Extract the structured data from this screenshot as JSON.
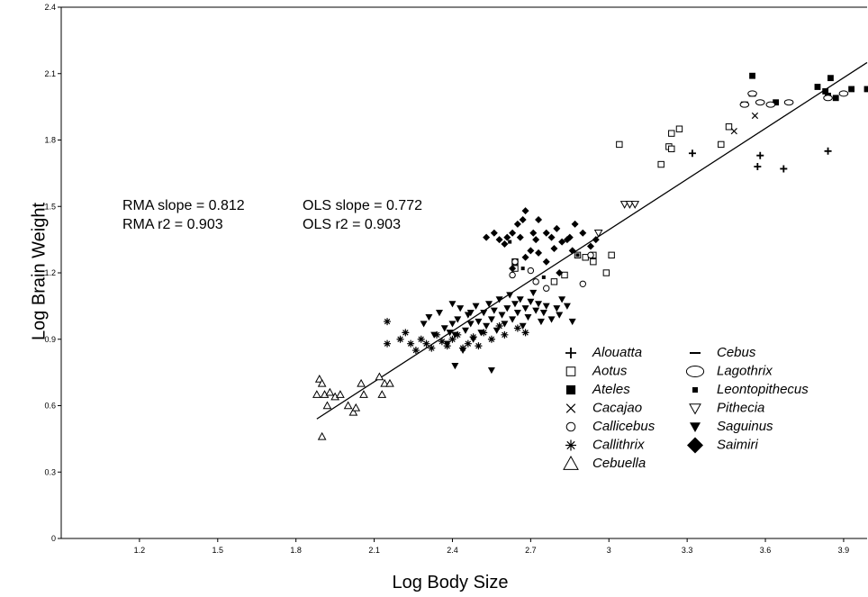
{
  "chart_data": {
    "type": "scatter",
    "title": "",
    "xlabel": "Log Body Size",
    "ylabel": "Log Brain Weight",
    "xlim": [
      0.9,
      3.99
    ],
    "ylim": [
      0,
      2.4
    ],
    "x_ticks": [
      "1.2",
      "1.5",
      "1.8",
      "2.1",
      "2.4",
      "2.7",
      "3",
      "3.3",
      "3.6",
      "3.9"
    ],
    "y_ticks": [
      "0",
      "0.3",
      "0.6",
      "0.9",
      "1.2",
      "1.5",
      "1.8",
      "2.1",
      "2.4"
    ],
    "grid": false,
    "legend_position": "bottom-right",
    "annotations": {
      "rma_slope": "RMA slope = 0.812",
      "rma_r2": "RMA r2 = 0.903",
      "ols_slope": "OLS slope = 0.772",
      "ols_r2": "OLS r2 = 0.903"
    },
    "regression_line": {
      "x": [
        1.88,
        3.99
      ],
      "y": [
        0.54,
        2.15
      ]
    },
    "series": [
      {
        "name": "Alouatta",
        "marker": "plus",
        "points": [
          [
            3.32,
            1.74
          ],
          [
            3.57,
            1.68
          ],
          [
            3.58,
            1.73
          ],
          [
            3.67,
            1.67
          ],
          [
            3.84,
            1.75
          ]
        ]
      },
      {
        "name": "Aotus",
        "marker": "open-square",
        "points": [
          [
            2.64,
            1.22
          ],
          [
            2.64,
            1.25
          ],
          [
            2.79,
            1.16
          ],
          [
            2.83,
            1.19
          ],
          [
            2.88,
            1.28
          ],
          [
            2.91,
            1.27
          ],
          [
            2.94,
            1.25
          ],
          [
            2.94,
            1.28
          ],
          [
            2.99,
            1.2
          ],
          [
            3.01,
            1.28
          ],
          [
            3.04,
            1.78
          ],
          [
            3.2,
            1.69
          ],
          [
            3.23,
            1.77
          ],
          [
            3.24,
            1.76
          ],
          [
            3.24,
            1.83
          ],
          [
            3.27,
            1.85
          ],
          [
            3.43,
            1.78
          ],
          [
            3.46,
            1.86
          ]
        ]
      },
      {
        "name": "Ateles",
        "marker": "filled-square",
        "points": [
          [
            3.55,
            2.09
          ],
          [
            3.64,
            1.97
          ],
          [
            3.8,
            2.04
          ],
          [
            3.83,
            2.02
          ],
          [
            3.84,
            2.0
          ],
          [
            3.85,
            2.08
          ],
          [
            3.87,
            1.99
          ],
          [
            3.93,
            2.03
          ],
          [
            3.99,
            2.03
          ]
        ]
      },
      {
        "name": "Cacajao",
        "marker": "x",
        "points": [
          [
            3.48,
            1.84
          ],
          [
            3.56,
            1.91
          ]
        ]
      },
      {
        "name": "Callicebus",
        "marker": "open-circle",
        "points": [
          [
            2.63,
            1.19
          ],
          [
            2.64,
            1.25
          ],
          [
            2.7,
            1.21
          ],
          [
            2.72,
            1.16
          ],
          [
            2.76,
            1.13
          ],
          [
            2.9,
            1.15
          ],
          [
            2.93,
            1.28
          ]
        ]
      },
      {
        "name": "Callithrix",
        "marker": "asterisk",
        "points": [
          [
            2.15,
            0.98
          ],
          [
            2.15,
            0.88
          ],
          [
            2.2,
            0.9
          ],
          [
            2.22,
            0.93
          ],
          [
            2.24,
            0.88
          ],
          [
            2.26,
            0.85
          ],
          [
            2.28,
            0.9
          ],
          [
            2.3,
            0.88
          ],
          [
            2.32,
            0.86
          ],
          [
            2.34,
            0.92
          ],
          [
            2.36,
            0.89
          ],
          [
            2.38,
            0.87
          ],
          [
            2.4,
            0.9
          ],
          [
            2.42,
            0.92
          ],
          [
            2.44,
            0.86
          ],
          [
            2.46,
            0.88
          ],
          [
            2.48,
            0.91
          ],
          [
            2.5,
            0.87
          ],
          [
            2.52,
            0.93
          ],
          [
            2.55,
            0.9
          ],
          [
            2.58,
            0.96
          ],
          [
            2.6,
            0.92
          ],
          [
            2.65,
            0.95
          ],
          [
            2.68,
            0.93
          ]
        ]
      },
      {
        "name": "Cebuella",
        "marker": "open-triangle",
        "points": [
          [
            1.88,
            0.65
          ],
          [
            1.89,
            0.72
          ],
          [
            1.9,
            0.7
          ],
          [
            1.91,
            0.65
          ],
          [
            1.92,
            0.6
          ],
          [
            1.93,
            0.66
          ],
          [
            1.95,
            0.64
          ],
          [
            1.97,
            0.65
          ],
          [
            1.9,
            0.46
          ],
          [
            2.0,
            0.6
          ],
          [
            2.02,
            0.57
          ],
          [
            2.03,
            0.59
          ],
          [
            2.05,
            0.7
          ],
          [
            2.06,
            0.65
          ],
          [
            2.12,
            0.73
          ],
          [
            2.13,
            0.65
          ],
          [
            2.14,
            0.7
          ],
          [
            2.16,
            0.7
          ]
        ]
      },
      {
        "name": "Cebus",
        "marker": "dash",
        "points": [
          [
            3.52,
            1.97
          ],
          [
            3.55,
            2.0
          ]
        ]
      },
      {
        "name": "Lagothrix",
        "marker": "open-ellipse",
        "points": [
          [
            3.52,
            1.96
          ],
          [
            3.55,
            2.01
          ],
          [
            3.58,
            1.97
          ],
          [
            3.62,
            1.96
          ],
          [
            3.69,
            1.97
          ],
          [
            3.84,
            1.99
          ],
          [
            3.9,
            2.01
          ]
        ]
      },
      {
        "name": "Leontopithecus",
        "marker": "small-square",
        "points": [
          [
            2.62,
            1.34
          ],
          [
            2.67,
            1.22
          ],
          [
            2.75,
            1.18
          ],
          [
            2.88,
            1.28
          ]
        ]
      },
      {
        "name": "Pithecia",
        "marker": "open-down-triangle",
        "points": [
          [
            2.96,
            1.38
          ],
          [
            3.06,
            1.51
          ],
          [
            3.08,
            1.51
          ],
          [
            3.1,
            1.51
          ]
        ]
      },
      {
        "name": "Saguinus",
        "marker": "filled-down-triangle",
        "points": [
          [
            2.29,
            0.97
          ],
          [
            2.31,
            1.0
          ],
          [
            2.33,
            0.92
          ],
          [
            2.35,
            1.02
          ],
          [
            2.37,
            0.95
          ],
          [
            2.38,
            0.88
          ],
          [
            2.4,
            0.97
          ],
          [
            2.4,
            1.06
          ],
          [
            2.41,
            0.92
          ],
          [
            2.42,
            0.99
          ],
          [
            2.43,
            1.04
          ],
          [
            2.44,
            0.85
          ],
          [
            2.45,
            0.94
          ],
          [
            2.46,
            1.01
          ],
          [
            2.47,
            0.97
          ],
          [
            2.48,
            0.9
          ],
          [
            2.49,
            1.05
          ],
          [
            2.5,
            0.98
          ],
          [
            2.51,
            0.93
          ],
          [
            2.52,
            1.02
          ],
          [
            2.53,
            0.96
          ],
          [
            2.54,
            1.06
          ],
          [
            2.55,
            0.99
          ],
          [
            2.56,
            1.03
          ],
          [
            2.57,
            0.94
          ],
          [
            2.58,
            1.08
          ],
          [
            2.59,
            1.01
          ],
          [
            2.6,
            0.97
          ],
          [
            2.61,
            1.04
          ],
          [
            2.62,
            1.1
          ],
          [
            2.63,
            0.99
          ],
          [
            2.64,
            1.06
          ],
          [
            2.65,
            1.02
          ],
          [
            2.66,
            1.08
          ],
          [
            2.67,
            0.96
          ],
          [
            2.68,
            1.04
          ],
          [
            2.69,
            1.0
          ],
          [
            2.7,
            1.07
          ],
          [
            2.71,
            1.11
          ],
          [
            2.72,
            1.03
          ],
          [
            2.73,
            1.06
          ],
          [
            2.74,
            0.98
          ],
          [
            2.75,
            1.02
          ],
          [
            2.76,
            1.05
          ],
          [
            2.78,
            0.99
          ],
          [
            2.8,
            1.04
          ],
          [
            2.81,
            1.01
          ],
          [
            2.82,
            1.08
          ],
          [
            2.84,
            1.05
          ],
          [
            2.41,
            0.78
          ],
          [
            2.55,
            0.76
          ],
          [
            2.86,
            0.98
          ],
          [
            2.39,
            0.93
          ],
          [
            2.47,
            1.02
          ]
        ]
      },
      {
        "name": "Saimiri",
        "marker": "filled-diamond",
        "points": [
          [
            2.53,
            1.36
          ],
          [
            2.56,
            1.38
          ],
          [
            2.58,
            1.35
          ],
          [
            2.61,
            1.36
          ],
          [
            2.63,
            1.38
          ],
          [
            2.65,
            1.42
          ],
          [
            2.66,
            1.36
          ],
          [
            2.67,
            1.44
          ],
          [
            2.68,
            1.48
          ],
          [
            2.71,
            1.38
          ],
          [
            2.73,
            1.44
          ],
          [
            2.76,
            1.38
          ],
          [
            2.78,
            1.36
          ],
          [
            2.8,
            1.4
          ],
          [
            2.82,
            1.34
          ],
          [
            2.85,
            1.36
          ],
          [
            2.87,
            1.42
          ],
          [
            2.9,
            1.38
          ],
          [
            2.93,
            1.32
          ],
          [
            2.95,
            1.35
          ],
          [
            2.63,
            1.22
          ],
          [
            2.7,
            1.3
          ],
          [
            2.73,
            1.29
          ],
          [
            2.68,
            1.27
          ],
          [
            2.76,
            1.25
          ],
          [
            2.79,
            1.31
          ],
          [
            2.81,
            1.2
          ],
          [
            2.84,
            1.35
          ],
          [
            2.86,
            1.3
          ],
          [
            2.6,
            1.33
          ],
          [
            2.72,
            1.35
          ]
        ]
      }
    ]
  }
}
